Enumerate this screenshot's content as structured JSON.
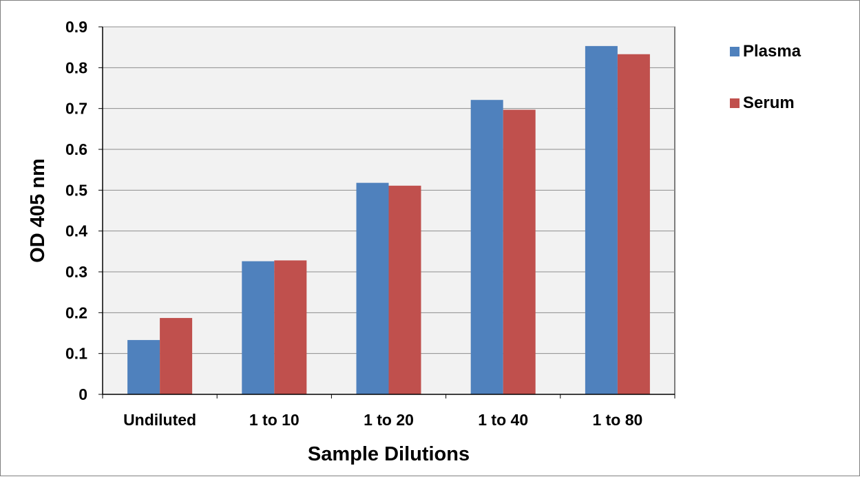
{
  "chart_data": {
    "type": "bar",
    "title": "",
    "xlabel": "Sample Dilutions",
    "ylabel": "OD 405 nm",
    "categories": [
      "Undiluted",
      "1 to 10",
      "1 to 20",
      "1 to 40",
      "1 to 80"
    ],
    "series": [
      {
        "name": "Plasma",
        "color": "#4f81bd",
        "values": [
          0.133,
          0.326,
          0.518,
          0.721,
          0.853
        ]
      },
      {
        "name": "Serum",
        "color": "#c0504d",
        "values": [
          0.187,
          0.328,
          0.511,
          0.697,
          0.833
        ]
      }
    ],
    "ylim": [
      0,
      0.9
    ],
    "yticks": [
      "0",
      "0.1",
      "0.2",
      "0.3",
      "0.4",
      "0.5",
      "0.6",
      "0.7",
      "0.8",
      "0.9"
    ],
    "grid": true,
    "plot_background": "#f2f2f2",
    "legend_position": "right"
  }
}
